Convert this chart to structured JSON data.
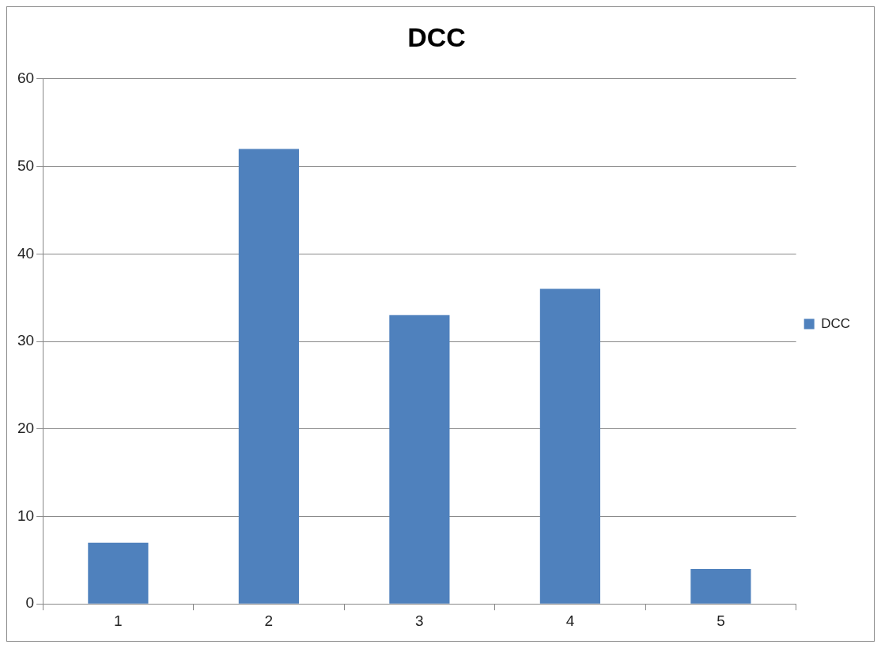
{
  "chart_data": {
    "type": "bar",
    "title": "DCC",
    "categories": [
      "1",
      "2",
      "3",
      "4",
      "5"
    ],
    "series": [
      {
        "name": "DCC",
        "color": "#4f81bd",
        "values": [
          7,
          52,
          33,
          36,
          4
        ]
      }
    ],
    "ylim": [
      0,
      60
    ],
    "yticks": [
      0,
      10,
      20,
      30,
      40,
      50,
      60
    ],
    "grid": "y",
    "legend": "right"
  }
}
